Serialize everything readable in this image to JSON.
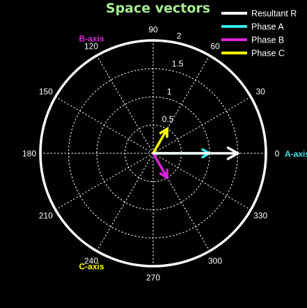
{
  "colors": {
    "background": "#000000",
    "title": "#a6ef8c",
    "grid": "#ffffff",
    "resultant": "#ffffff",
    "phase_a": "#33e8f0",
    "phase_b": "#dd22dd",
    "phase_c": "#ffff00"
  },
  "chart_data": {
    "type": "polar",
    "title": "Space vectors",
    "radial_max": 2,
    "radial_ticks": [
      0.5,
      1,
      1.5,
      2
    ],
    "radial_tick_labels": [
      "0.5",
      "1",
      "1.5",
      "2"
    ],
    "radial_label_angle_deg": 80,
    "angular_ticks_deg": [
      0,
      30,
      60,
      90,
      120,
      150,
      180,
      210,
      240,
      270,
      300,
      330
    ],
    "angular_tick_labels": [
      "0",
      "30",
      "60",
      "90",
      "120",
      "150",
      "180",
      "210",
      "240",
      "270",
      "300",
      "330"
    ],
    "grid": true,
    "legend_position": "top-right",
    "axis_annotations": [
      {
        "key": "a",
        "label": "A-axis",
        "angle_deg": 0,
        "color": "#33e8f0"
      },
      {
        "key": "b",
        "label": "B-axis",
        "angle_deg": 120,
        "color": "#dd22dd"
      },
      {
        "key": "c",
        "label": "C-axis",
        "angle_deg": 240,
        "color": "#ffff00"
      }
    ],
    "series": [
      {
        "key": "resultant",
        "name": "Resultant R",
        "color": "#ffffff",
        "magnitude": 1.5,
        "angle_deg": 0
      },
      {
        "key": "a",
        "name": "Phase A",
        "color": "#33e8f0",
        "magnitude": 1.0,
        "angle_deg": 0
      },
      {
        "key": "b",
        "name": "Phase B",
        "color": "#dd22dd",
        "magnitude": 0.5,
        "angle_deg": 300
      },
      {
        "key": "c",
        "name": "Phase C",
        "color": "#ffff00",
        "magnitude": 0.5,
        "angle_deg": 60
      }
    ]
  }
}
